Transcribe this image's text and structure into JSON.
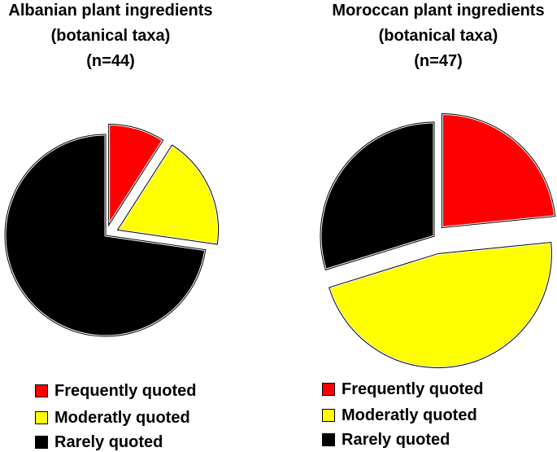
{
  "chart_data": [
    {
      "type": "pie",
      "title": [
        "Albanian plant ingredients",
        "(botanical taxa)",
        "(n=44)"
      ],
      "categories": [
        "Frequently quoted",
        "Moderatly quoted",
        "Rarely quoted"
      ],
      "values": [
        4,
        8,
        32
      ],
      "exploded": [
        true,
        true,
        false
      ],
      "colors": [
        "#ff0000",
        "#ffff00",
        "#000000"
      ],
      "legend": "bottom"
    },
    {
      "type": "pie",
      "title": [
        "Moroccan plant ingredients",
        "(botanical taxa)",
        "(n=47)"
      ],
      "categories": [
        "Frequently quoted",
        "Moderatly quoted",
        "Rarely quoted"
      ],
      "values": [
        11,
        22,
        14
      ],
      "exploded": [
        true,
        true,
        false
      ],
      "colors": [
        "#ff0000",
        "#ffff00",
        "#000000"
      ],
      "legend": "bottom"
    }
  ]
}
